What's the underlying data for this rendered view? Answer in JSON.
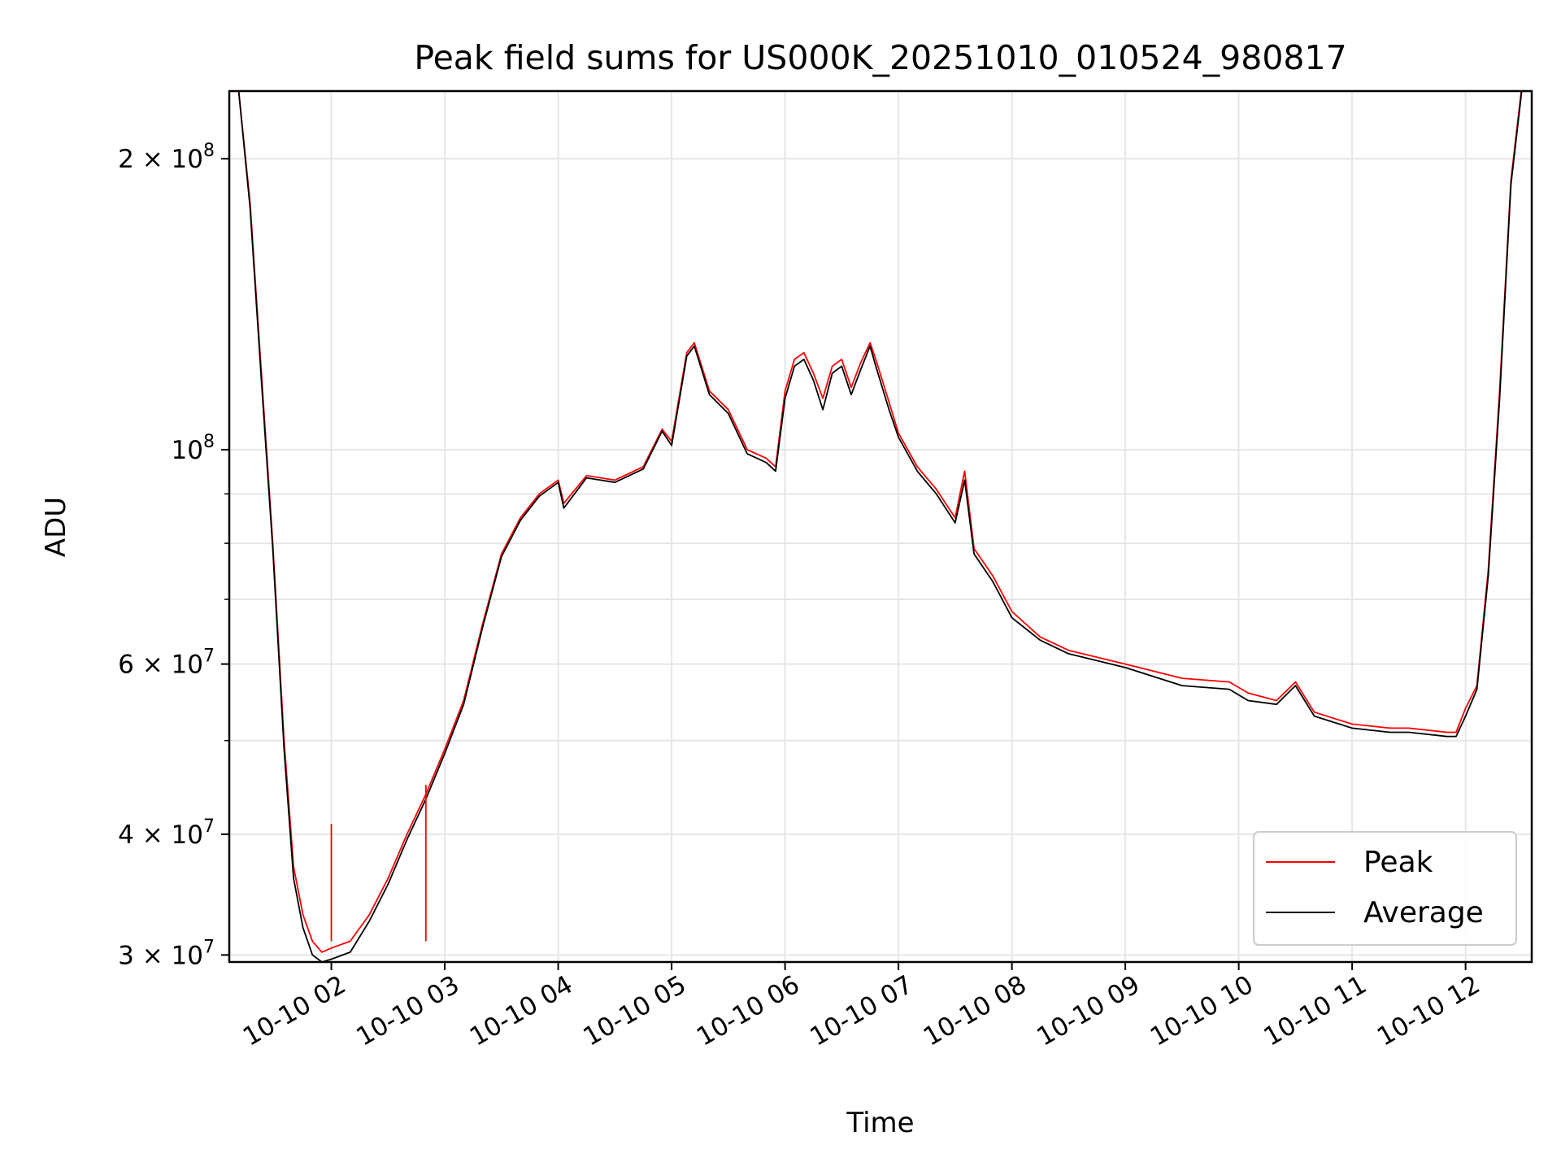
{
  "chart_data": {
    "type": "line",
    "title": "Peak field sums for US000K_20251010_010524_980817",
    "xlabel": "Time",
    "ylabel": "ADU",
    "xscale": "time",
    "yscale": "log",
    "xlim": [
      "2025-10-10 01:06",
      "2025-10-10 12:35"
    ],
    "ylim": [
      29500000,
      235000000
    ],
    "grid": true,
    "legend": "lower right",
    "x_ticks": [
      {
        "t": "2025-10-10 02:00",
        "label": "10-10 02"
      },
      {
        "t": "2025-10-10 03:00",
        "label": "10-10 03"
      },
      {
        "t": "2025-10-10 04:00",
        "label": "10-10 04"
      },
      {
        "t": "2025-10-10 05:00",
        "label": "10-10 05"
      },
      {
        "t": "2025-10-10 06:00",
        "label": "10-10 06"
      },
      {
        "t": "2025-10-10 07:00",
        "label": "10-10 07"
      },
      {
        "t": "2025-10-10 08:00",
        "label": "10-10 08"
      },
      {
        "t": "2025-10-10 09:00",
        "label": "10-10 09"
      },
      {
        "t": "2025-10-10 10:00",
        "label": "10-10 10"
      },
      {
        "t": "2025-10-10 11:00",
        "label": "10-10 11"
      },
      {
        "t": "2025-10-10 12:00",
        "label": "10-10 12"
      }
    ],
    "y_ticks": [
      {
        "v": 30000000,
        "base": "3 × 10",
        "exp": "7"
      },
      {
        "v": 40000000,
        "base": "4 × 10",
        "exp": "7"
      },
      {
        "v": 60000000,
        "base": "6 × 10",
        "exp": "7"
      },
      {
        "v": 100000000,
        "base": "10",
        "exp": "8"
      },
      {
        "v": 200000000,
        "base": "2 × 10",
        "exp": "8"
      }
    ],
    "y_minor_ticks": [
      50000000,
      70000000,
      80000000,
      90000000
    ],
    "series": [
      {
        "name": "Peak",
        "color": "#ff0000",
        "x": [
          "2025-10-10 01:11",
          "2025-10-10 01:17",
          "2025-10-10 01:23",
          "2025-10-10 01:29",
          "2025-10-10 01:35",
          "2025-10-10 01:40",
          "2025-10-10 01:45",
          "2025-10-10 01:50",
          "2025-10-10 01:55",
          "2025-10-10 02:00",
          "2025-10-10 02:10",
          "2025-10-10 02:20",
          "2025-10-10 02:30",
          "2025-10-10 02:40",
          "2025-10-10 02:50",
          "2025-10-10 03:00",
          "2025-10-10 03:10",
          "2025-10-10 03:20",
          "2025-10-10 03:30",
          "2025-10-10 03:40",
          "2025-10-10 03:50",
          "2025-10-10 04:00",
          "2025-10-10 04:03",
          "2025-10-10 04:15",
          "2025-10-10 04:30",
          "2025-10-10 04:45",
          "2025-10-10 04:55",
          "2025-10-10 05:00",
          "2025-10-10 05:08",
          "2025-10-10 05:12",
          "2025-10-10 05:20",
          "2025-10-10 05:30",
          "2025-10-10 05:40",
          "2025-10-10 05:50",
          "2025-10-10 05:55",
          "2025-10-10 06:00",
          "2025-10-10 06:05",
          "2025-10-10 06:10",
          "2025-10-10 06:15",
          "2025-10-10 06:20",
          "2025-10-10 06:25",
          "2025-10-10 06:30",
          "2025-10-10 06:35",
          "2025-10-10 06:40",
          "2025-10-10 06:45",
          "2025-10-10 06:48",
          "2025-10-10 06:55",
          "2025-10-10 07:00",
          "2025-10-10 07:10",
          "2025-10-10 07:20",
          "2025-10-10 07:30",
          "2025-10-10 07:35",
          "2025-10-10 07:40",
          "2025-10-10 07:50",
          "2025-10-10 08:00",
          "2025-10-10 08:15",
          "2025-10-10 08:30",
          "2025-10-10 09:00",
          "2025-10-10 09:30",
          "2025-10-10 09:55",
          "2025-10-10 10:05",
          "2025-10-10 10:20",
          "2025-10-10 10:30",
          "2025-10-10 10:40",
          "2025-10-10 11:00",
          "2025-10-10 11:20",
          "2025-10-10 11:30",
          "2025-10-10 11:50",
          "2025-10-10 11:55",
          "2025-10-10 12:00",
          "2025-10-10 12:06",
          "2025-10-10 12:12",
          "2025-10-10 12:18",
          "2025-10-10 12:24",
          "2025-10-10 12:30"
        ],
        "y": [
          235000000,
          180000000,
          120000000,
          80000000,
          50000000,
          37000000,
          33000000,
          31000000,
          30200000,
          30500000,
          31000000,
          33000000,
          36000000,
          40000000,
          44000000,
          49000000,
          55000000,
          66000000,
          78000000,
          85000000,
          90000000,
          93000000,
          88000000,
          94000000,
          93000000,
          96000000,
          105000000,
          102000000,
          126000000,
          129000000,
          115000000,
          110000000,
          100000000,
          98000000,
          96000000,
          115000000,
          124000000,
          126000000,
          120000000,
          113000000,
          122000000,
          124000000,
          116000000,
          123000000,
          129000000,
          124000000,
          112000000,
          104000000,
          96000000,
          91000000,
          85000000,
          95000000,
          79000000,
          74000000,
          68000000,
          64000000,
          62000000,
          60000000,
          58000000,
          57500000,
          56000000,
          55000000,
          57500000,
          53500000,
          52000000,
          51500000,
          51500000,
          51000000,
          51000000,
          54000000,
          57000000,
          75000000,
          115000000,
          190000000,
          240000000
        ]
      },
      {
        "name": "Average",
        "color": "#000000",
        "x": [
          "2025-10-10 01:11",
          "2025-10-10 01:17",
          "2025-10-10 01:23",
          "2025-10-10 01:29",
          "2025-10-10 01:35",
          "2025-10-10 01:40",
          "2025-10-10 01:45",
          "2025-10-10 01:50",
          "2025-10-10 01:55",
          "2025-10-10 02:00",
          "2025-10-10 02:10",
          "2025-10-10 02:20",
          "2025-10-10 02:30",
          "2025-10-10 02:40",
          "2025-10-10 02:50",
          "2025-10-10 03:00",
          "2025-10-10 03:10",
          "2025-10-10 03:20",
          "2025-10-10 03:30",
          "2025-10-10 03:40",
          "2025-10-10 03:50",
          "2025-10-10 04:00",
          "2025-10-10 04:03",
          "2025-10-10 04:15",
          "2025-10-10 04:30",
          "2025-10-10 04:45",
          "2025-10-10 04:55",
          "2025-10-10 05:00",
          "2025-10-10 05:08",
          "2025-10-10 05:12",
          "2025-10-10 05:20",
          "2025-10-10 05:30",
          "2025-10-10 05:40",
          "2025-10-10 05:50",
          "2025-10-10 05:55",
          "2025-10-10 06:00",
          "2025-10-10 06:05",
          "2025-10-10 06:10",
          "2025-10-10 06:15",
          "2025-10-10 06:20",
          "2025-10-10 06:25",
          "2025-10-10 06:30",
          "2025-10-10 06:35",
          "2025-10-10 06:40",
          "2025-10-10 06:45",
          "2025-10-10 06:48",
          "2025-10-10 06:55",
          "2025-10-10 07:00",
          "2025-10-10 07:10",
          "2025-10-10 07:20",
          "2025-10-10 07:30",
          "2025-10-10 07:35",
          "2025-10-10 07:40",
          "2025-10-10 07:50",
          "2025-10-10 08:00",
          "2025-10-10 08:15",
          "2025-10-10 08:30",
          "2025-10-10 09:00",
          "2025-10-10 09:30",
          "2025-10-10 09:55",
          "2025-10-10 10:05",
          "2025-10-10 10:20",
          "2025-10-10 10:30",
          "2025-10-10 10:40",
          "2025-10-10 11:00",
          "2025-10-10 11:20",
          "2025-10-10 11:30",
          "2025-10-10 11:50",
          "2025-10-10 11:55",
          "2025-10-10 12:00",
          "2025-10-10 12:06",
          "2025-10-10 12:12",
          "2025-10-10 12:18",
          "2025-10-10 12:24",
          "2025-10-10 12:30"
        ],
        "y": [
          235000000,
          178000000,
          118000000,
          79000000,
          49000000,
          36000000,
          32000000,
          30000000,
          29500000,
          29700000,
          30200000,
          32500000,
          35500000,
          39500000,
          43500000,
          48500000,
          54500000,
          65500000,
          77500000,
          84500000,
          89500000,
          92500000,
          87000000,
          93500000,
          92500000,
          95500000,
          104500000,
          101000000,
          125000000,
          128000000,
          114000000,
          109000000,
          99000000,
          97000000,
          95000000,
          113000000,
          122000000,
          124000000,
          118000000,
          110000000,
          120000000,
          122000000,
          114000000,
          121000000,
          128000000,
          122000000,
          110000000,
          103000000,
          95000000,
          90000000,
          84000000,
          93000000,
          78000000,
          73000000,
          67000000,
          63500000,
          61500000,
          59500000,
          57000000,
          56500000,
          55000000,
          54500000,
          57000000,
          53000000,
          51500000,
          51000000,
          51000000,
          50500000,
          50500000,
          53000000,
          56500000,
          74000000,
          113000000,
          188000000,
          238000000
        ]
      }
    ],
    "spikes": [
      {
        "t": "2025-10-10 02:00",
        "y": 41000000
      },
      {
        "t": "2025-10-10 02:50",
        "y": 45000000
      }
    ]
  }
}
